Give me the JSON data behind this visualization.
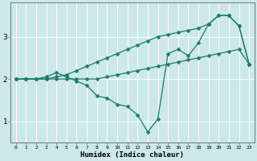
{
  "xlabel": "Humidex (Indice chaleur)",
  "bg_color": "#cce8e8",
  "grid_color": "#ffffff",
  "line_color": "#1a7a6a",
  "xlim": [
    -0.5,
    23.5
  ],
  "ylim": [
    0.5,
    3.8
  ],
  "xticks": [
    0,
    1,
    2,
    3,
    4,
    5,
    6,
    7,
    8,
    9,
    10,
    11,
    12,
    13,
    14,
    15,
    16,
    17,
    18,
    19,
    20,
    21,
    22,
    23
  ],
  "yticks": [
    1,
    2,
    3
  ],
  "line1_x": [
    0,
    1,
    2,
    3,
    4,
    5,
    6,
    7,
    8,
    9,
    10,
    11,
    12,
    13,
    14,
    15,
    16,
    17,
    18,
    19,
    20,
    21,
    22,
    23
  ],
  "line1_y": [
    2.0,
    2.0,
    2.0,
    2.0,
    2.0,
    2.0,
    2.0,
    2.0,
    2.0,
    2.05,
    2.1,
    2.15,
    2.2,
    2.25,
    2.3,
    2.35,
    2.4,
    2.45,
    2.5,
    2.55,
    2.6,
    2.65,
    2.7,
    2.35
  ],
  "line2_x": [
    0,
    1,
    2,
    3,
    4,
    5,
    6,
    7,
    8,
    9,
    10,
    11,
    12,
    13,
    14,
    15,
    16,
    17,
    18,
    19,
    20,
    21,
    22,
    23
  ],
  "line2_y": [
    2.0,
    2.0,
    2.0,
    2.05,
    2.15,
    2.05,
    1.95,
    1.85,
    1.6,
    1.55,
    1.4,
    1.35,
    1.15,
    0.75,
    1.05,
    2.6,
    2.7,
    2.55,
    2.85,
    3.3,
    3.5,
    3.5,
    3.25,
    2.35
  ],
  "line3_x": [
    0,
    1,
    2,
    3,
    4,
    5,
    6,
    7,
    8,
    9,
    10,
    11,
    12,
    13,
    14,
    15,
    16,
    17,
    18,
    19,
    20,
    21,
    22,
    23
  ],
  "line3_y": [
    2.0,
    2.0,
    2.0,
    2.0,
    2.05,
    2.1,
    2.2,
    2.3,
    2.4,
    2.5,
    2.6,
    2.7,
    2.8,
    2.9,
    3.0,
    3.05,
    3.1,
    3.15,
    3.2,
    3.3,
    3.5,
    3.5,
    3.25,
    2.35
  ]
}
